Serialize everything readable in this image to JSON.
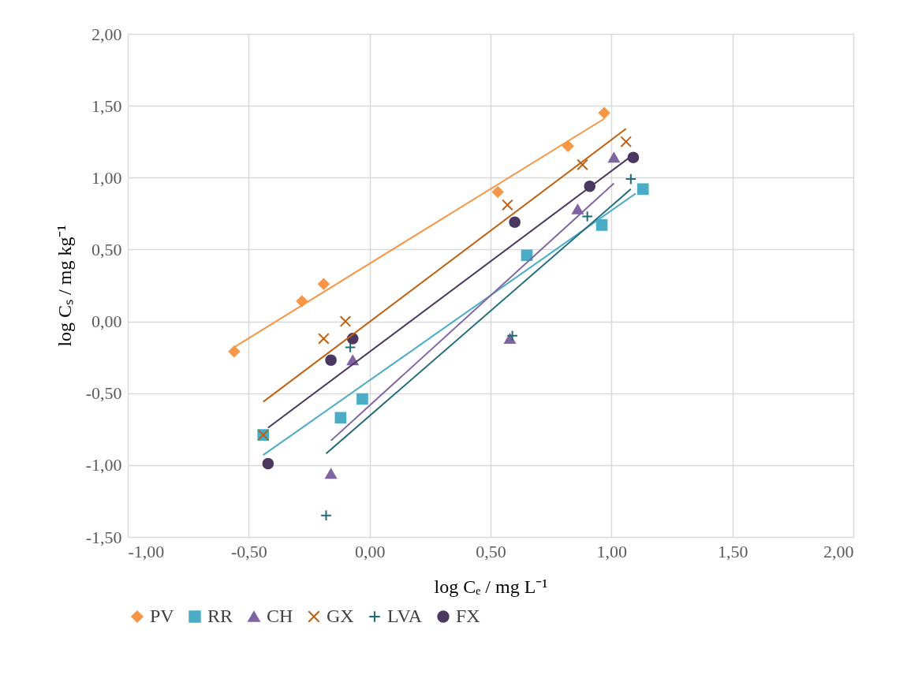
{
  "chart_data": {
    "type": "scatter",
    "xlabel": "log Cₑ / mg L⁻¹",
    "ylabel": "log Cₛ / mg kg⁻¹",
    "xlim": [
      -1,
      2
    ],
    "ylim": [
      -1.5,
      2
    ],
    "xticks": [
      {
        "value": -1,
        "label": "-1,00"
      },
      {
        "value": -0.5,
        "label": "-0,50"
      },
      {
        "value": 0,
        "label": "0,00"
      },
      {
        "value": 0.5,
        "label": "0,50"
      },
      {
        "value": 1,
        "label": "1,00"
      },
      {
        "value": 1.5,
        "label": "1,50"
      },
      {
        "value": 2,
        "label": "2,00"
      }
    ],
    "yticks": [
      {
        "value": -1.5,
        "label": "-1,50"
      },
      {
        "value": -1,
        "label": "-1,00"
      },
      {
        "value": -0.5,
        "label": "-0,50"
      },
      {
        "value": 0,
        "label": "0,00"
      },
      {
        "value": 0.5,
        "label": "0,50"
      },
      {
        "value": 1,
        "label": "1,00"
      },
      {
        "value": 1.5,
        "label": "1,50"
      },
      {
        "value": 2,
        "label": "2,00"
      }
    ],
    "grid": true,
    "legend": "bottom",
    "series": [
      {
        "name": "PV",
        "type": "scatter",
        "marker": "diamond",
        "color": "#f79646",
        "x": [
          -0.56,
          -0.28,
          -0.19,
          0.53,
          0.82,
          0.97
        ],
        "values": [
          -0.21,
          0.14,
          0.26,
          0.9,
          1.22,
          1.45
        ]
      },
      {
        "name": "RR",
        "type": "scatter",
        "marker": "square",
        "color": "#4bacc6",
        "x": [
          -0.44,
          -0.12,
          -0.03,
          0.65,
          0.96,
          1.13
        ],
        "values": [
          -0.79,
          -0.67,
          -0.54,
          0.46,
          0.67,
          0.92
        ]
      },
      {
        "name": "CH",
        "type": "scatter",
        "marker": "triangle",
        "color": "#8064a2",
        "x": [
          -0.16,
          -0.07,
          0.58,
          0.86,
          1.01
        ],
        "values": [
          -1.06,
          -0.27,
          -0.12,
          0.78,
          1.14
        ]
      },
      {
        "name": "GX",
        "type": "scatter",
        "marker": "cross",
        "color": "#c0600f",
        "x": [
          -0.44,
          -0.19,
          -0.1,
          0.57,
          0.88,
          1.06
        ],
        "values": [
          -0.79,
          -0.12,
          0.0,
          0.81,
          1.09,
          1.25
        ]
      },
      {
        "name": "LVA",
        "type": "scatter",
        "marker": "plus",
        "color": "#1f6b7a",
        "x": [
          -0.18,
          -0.08,
          0.59,
          0.9,
          1.08
        ],
        "values": [
          -1.35,
          -0.18,
          -0.1,
          0.73,
          0.99
        ]
      },
      {
        "name": "FX",
        "type": "scatter",
        "marker": "circle",
        "color": "#4b3861",
        "x": [
          -0.42,
          -0.16,
          -0.07,
          0.6,
          0.91,
          1.09
        ],
        "values": [
          -0.99,
          -0.27,
          -0.12,
          0.69,
          0.94,
          1.14
        ]
      },
      {
        "type": "line",
        "color": "#f79646",
        "x": [
          -0.56,
          0.97
        ],
        "values": [
          -0.18,
          1.41
        ]
      },
      {
        "type": "line",
        "color": "#4bacc6",
        "x": [
          -0.44,
          1.1
        ],
        "values": [
          -0.93,
          0.89
        ]
      },
      {
        "type": "line",
        "color": "#8064a2",
        "x": [
          -0.16,
          1.01
        ],
        "values": [
          -0.83,
          0.96
        ]
      },
      {
        "type": "line",
        "color": "#c0600f",
        "x": [
          -0.44,
          1.06
        ],
        "values": [
          -0.56,
          1.34
        ]
      },
      {
        "type": "line",
        "color": "#1f6b7a",
        "x": [
          -0.18,
          1.08
        ],
        "values": [
          -0.92,
          0.92
        ]
      },
      {
        "type": "line",
        "color": "#4b3861",
        "x": [
          -0.42,
          1.09
        ],
        "values": [
          -0.74,
          1.16
        ]
      }
    ]
  }
}
